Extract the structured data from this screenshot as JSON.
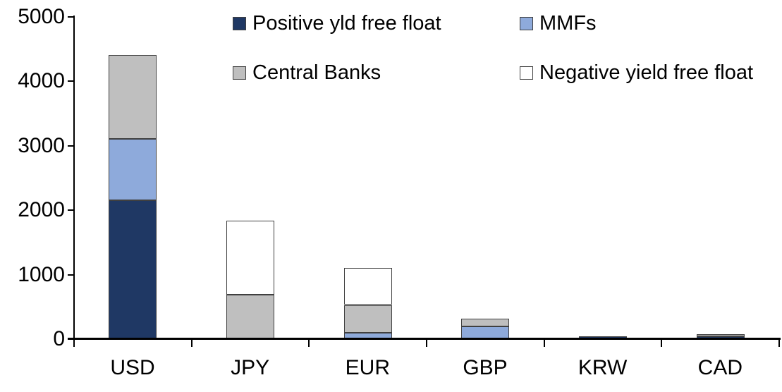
{
  "chart_data": {
    "type": "bar",
    "stacked": true,
    "title": "",
    "xlabel": "",
    "ylabel": "",
    "categories": [
      "USD",
      "JPY",
      "EUR",
      "GBP",
      "KRW",
      "CAD"
    ],
    "series": [
      {
        "name": "Positive yld free float",
        "color": "#1F3864",
        "values": [
          2150,
          0,
          0,
          0,
          45,
          40
        ]
      },
      {
        "name": "MMFs",
        "color": "#8EAADB",
        "values": [
          950,
          0,
          100,
          200,
          0,
          0
        ]
      },
      {
        "name": "Central Banks",
        "color": "#BFBFBF",
        "values": [
          1300,
          690,
          430,
          120,
          0,
          35
        ]
      },
      {
        "name": "Negative yield free float",
        "color": "#FFFFFF",
        "values": [
          0,
          1150,
          570,
          0,
          0,
          0
        ]
      }
    ],
    "totals": {
      "USD": 4400,
      "JPY": 1840,
      "EUR": 1100,
      "GBP": 320,
      "KRW": 45,
      "CAD": 75
    },
    "ylim": [
      0,
      5000
    ],
    "yticks": [
      0,
      1000,
      2000,
      3000,
      4000,
      5000
    ],
    "grid": false,
    "legend_position": "top-inside-two-columns",
    "bar_outline_color": "#404040",
    "axis_color": "#000000"
  }
}
